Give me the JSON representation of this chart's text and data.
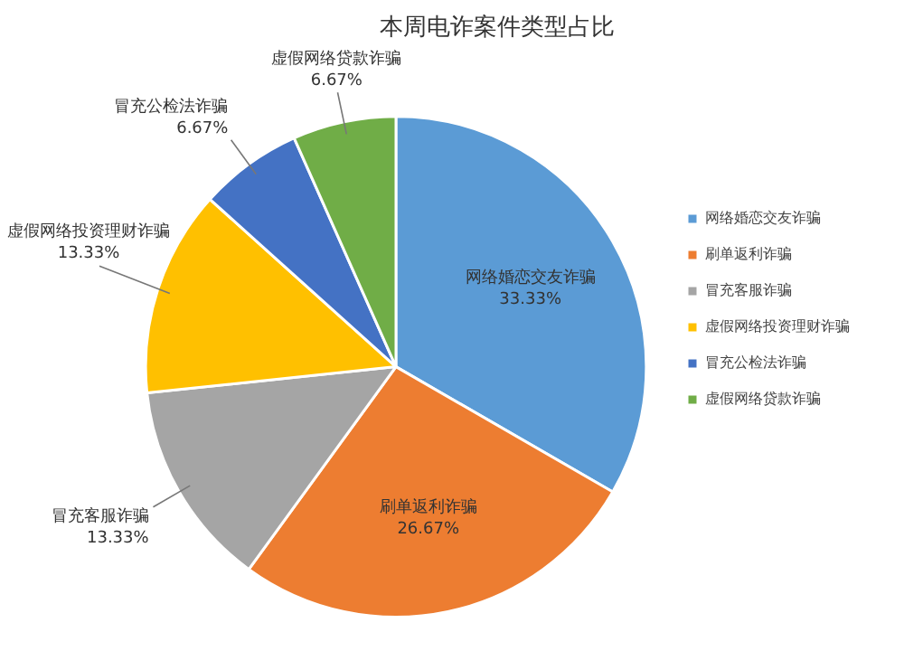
{
  "chart_data": {
    "type": "pie",
    "title": "本周电诈案件类型占比",
    "categories": [
      "网络婚恋交友诈骗",
      "刷单返利诈骗",
      "冒充客服诈骗",
      "虚假网络投资理财诈骗",
      "冒充公检法诈骗",
      "虚假网络贷款诈骗"
    ],
    "values": [
      33.33,
      26.67,
      13.33,
      13.33,
      6.67,
      6.67
    ],
    "value_labels": [
      "33.33%",
      "26.67%",
      "13.33%",
      "13.33%",
      "6.67%",
      "6.67%"
    ],
    "colors": [
      "#5b9bd5",
      "#ed7d31",
      "#a5a5a5",
      "#ffc000",
      "#4472c4",
      "#70ad47"
    ],
    "legend": "right"
  }
}
